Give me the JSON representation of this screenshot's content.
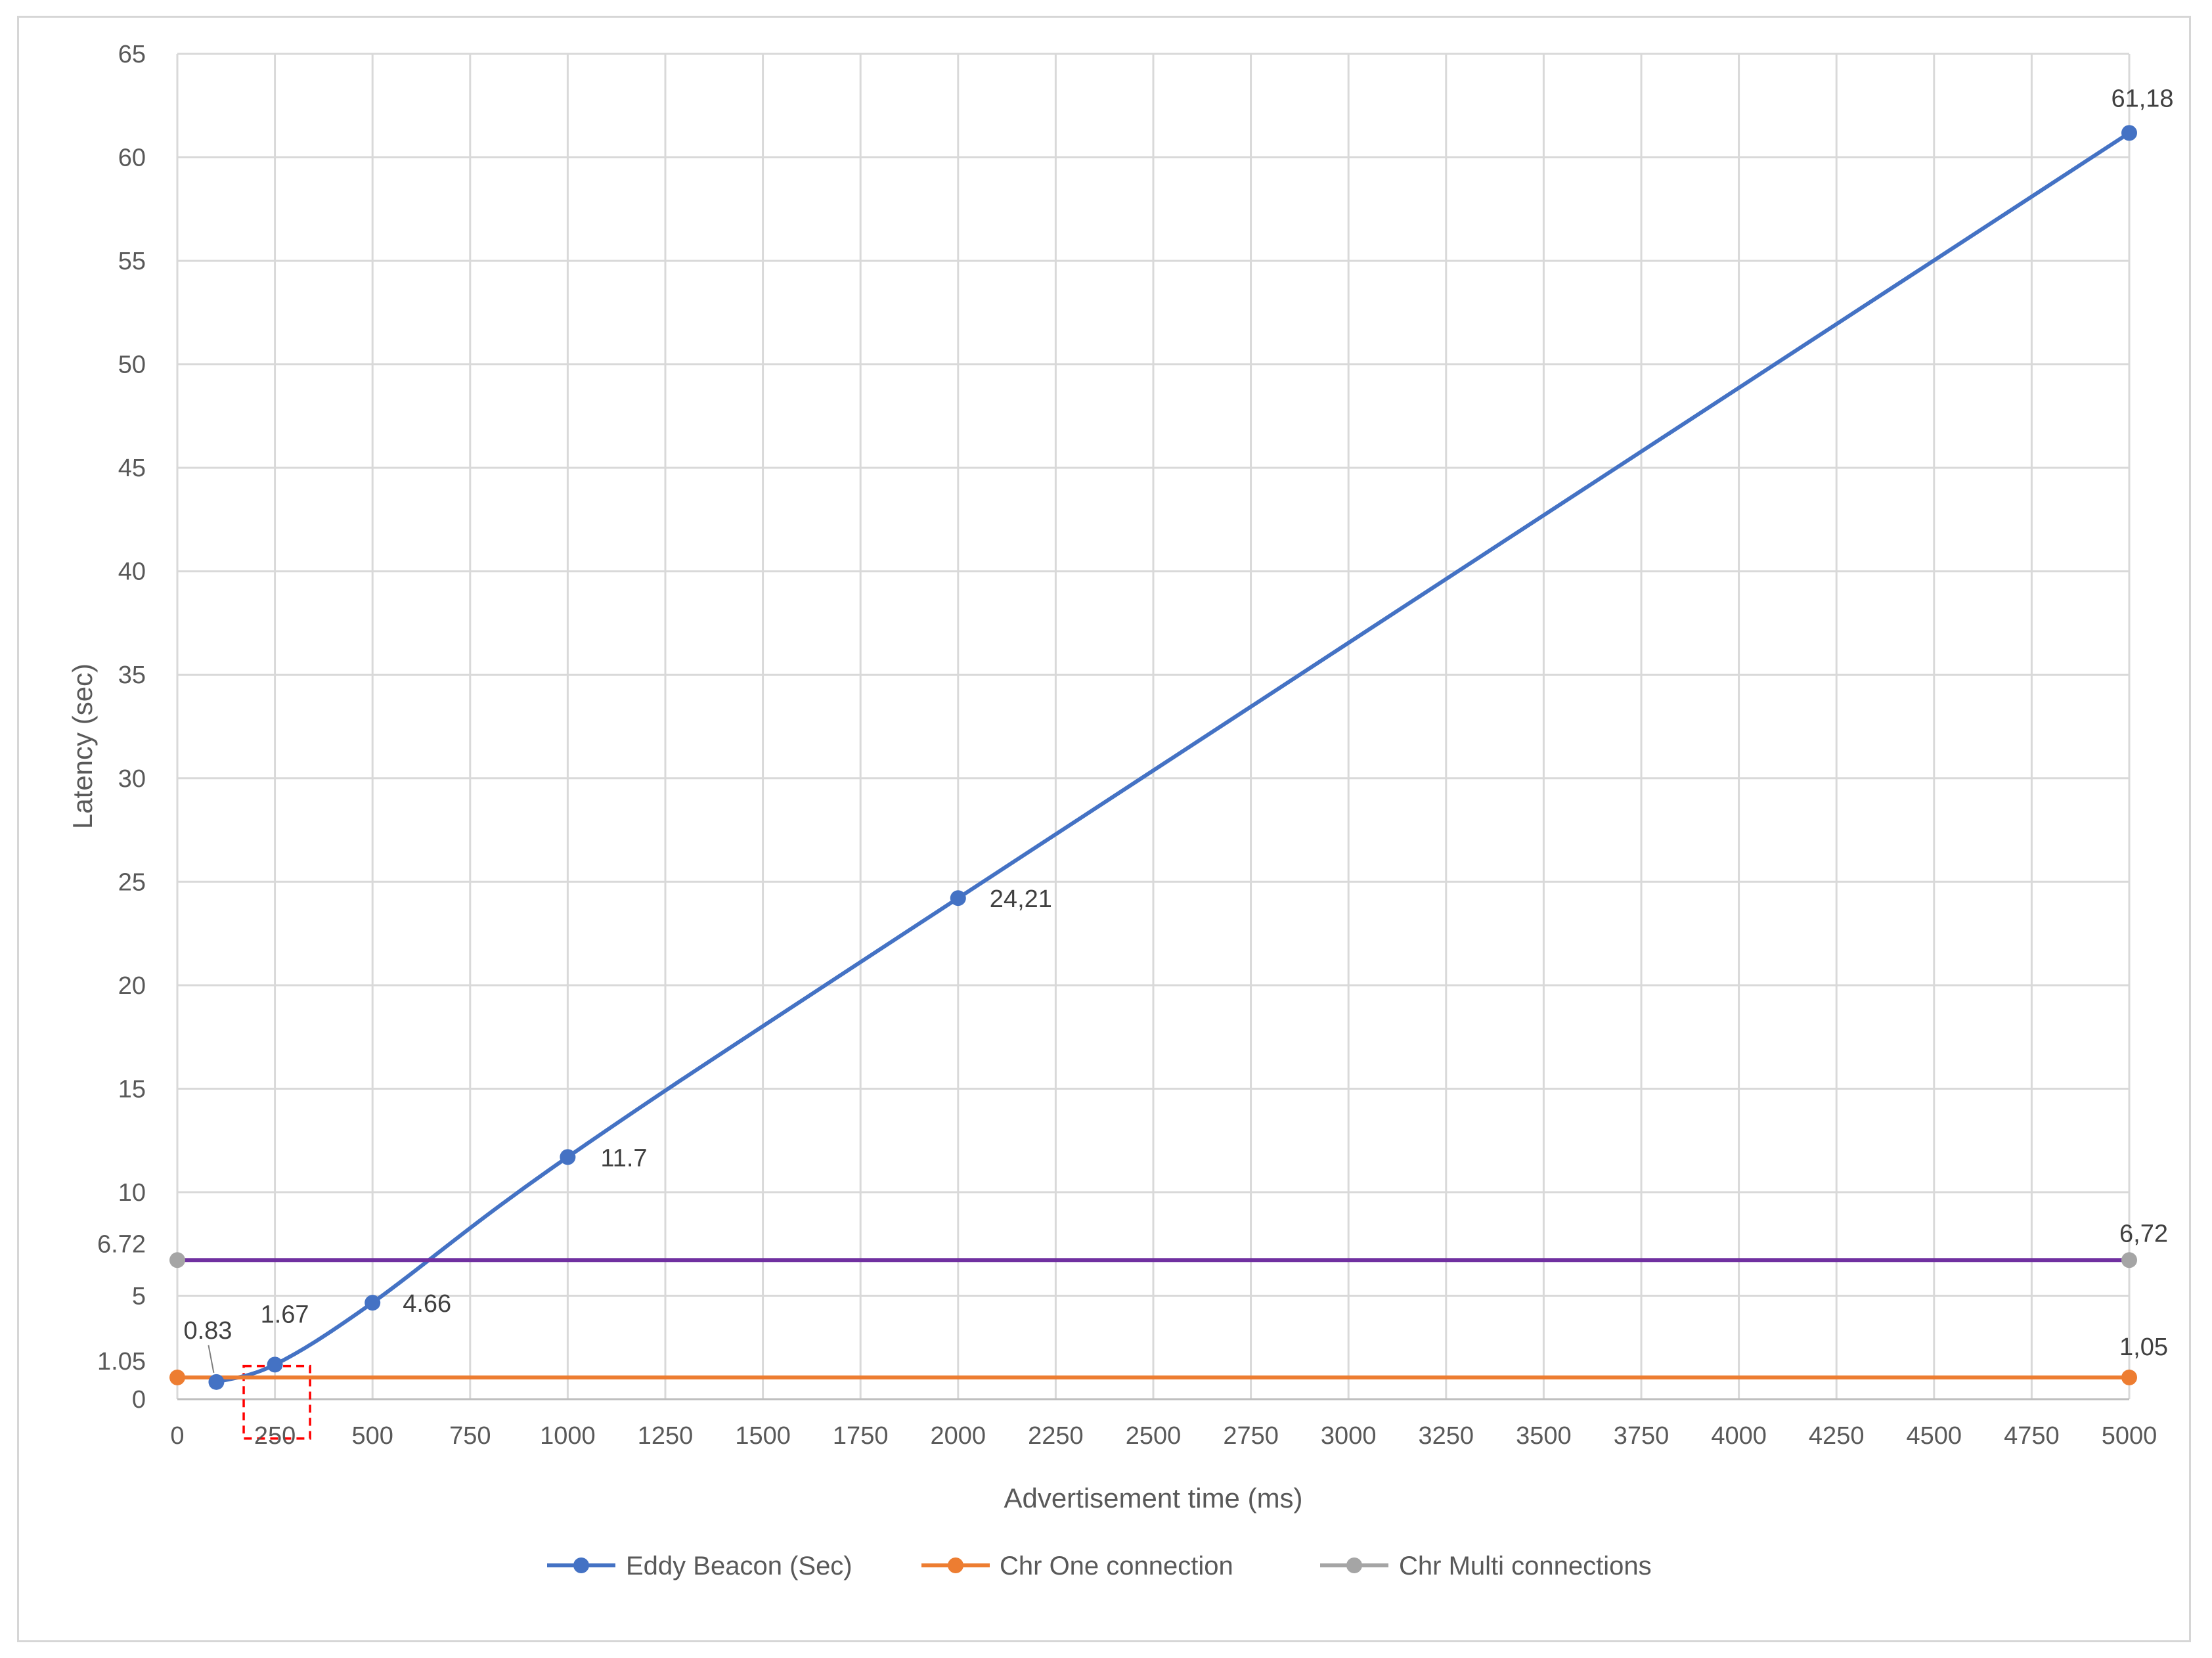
{
  "chart_data": {
    "type": "line",
    "xlabel": "Advertisement time (ms)",
    "ylabel": "Latency (sec)",
    "xlim": [
      0,
      5000
    ],
    "ylim": [
      0,
      65
    ],
    "grid": true,
    "legend_position": "bottom",
    "x_ticks": [
      "0",
      "250",
      "500",
      "750",
      "1000",
      "1250",
      "1500",
      "1750",
      "2000",
      "2250",
      "2500",
      "2750",
      "3000",
      "3250",
      "3500",
      "3750",
      "4000",
      "4250",
      "4500",
      "4750",
      "5000"
    ],
    "y_ticks": [
      "0",
      "5",
      "10",
      "15",
      "20",
      "25",
      "30",
      "35",
      "40",
      "45",
      "50",
      "55",
      "60",
      "65"
    ],
    "extra_y_tick_labels": [
      {
        "value": 1.05,
        "label": "1.05"
      },
      {
        "value": 6.72,
        "label": "6.72"
      }
    ],
    "series": [
      {
        "name": "Eddy Beacon (Sec)",
        "color": "#4472c4",
        "x": [
          100,
          250,
          500,
          1000,
          2000,
          5000
        ],
        "y": [
          0.83,
          1.67,
          4.66,
          11.7,
          24.21,
          61.18
        ],
        "labels": [
          "0.83",
          "1.67",
          "4.66",
          "11.7",
          "24,21",
          "61,18"
        ]
      },
      {
        "name": "Chr One connection",
        "color": "#ed7d31",
        "x": [
          0,
          5000
        ],
        "y": [
          1.05,
          1.05
        ],
        "labels": [
          "",
          "1,05"
        ]
      },
      {
        "name": "Chr Multi connections",
        "color": "#a5a5a5",
        "line_color": "#7030a0",
        "x": [
          0,
          5000
        ],
        "y": [
          6.72,
          6.72
        ],
        "labels": [
          "",
          "6,72"
        ]
      }
    ],
    "annotation": {
      "type": "dashed-box",
      "color": "#ff0000",
      "x_range": [
        170,
        340
      ],
      "y_range": [
        -1.9,
        1.6
      ]
    }
  }
}
